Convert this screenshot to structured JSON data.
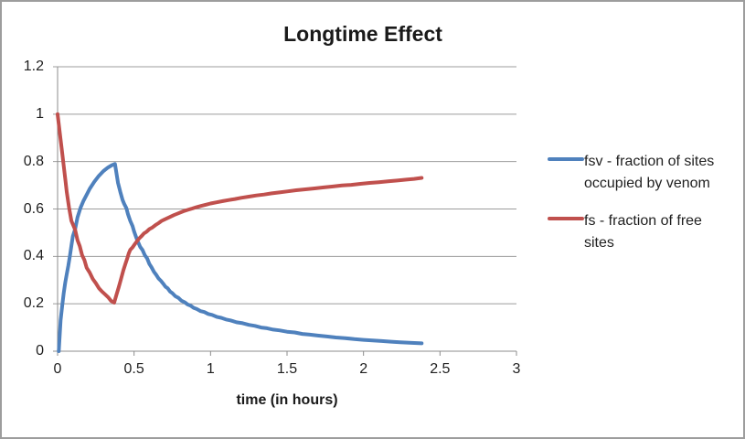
{
  "chart_data": {
    "type": "line",
    "title": "Longtime Effect",
    "xlabel": "time (in hours)",
    "ylabel": "",
    "xlim": [
      0,
      3
    ],
    "ylim": [
      0,
      1.2
    ],
    "xticks": [
      "0",
      "0.5",
      "1",
      "1.5",
      "2",
      "2.5",
      "3"
    ],
    "yticks": [
      "0",
      "0.2",
      "0.4",
      "0.6",
      "0.8",
      "1",
      "1.2"
    ],
    "grid": "horizontal",
    "legend_position": "right",
    "colors": {
      "gridline": "#9c9c9c",
      "axis": "#8c8c8c",
      "text": "#1f1f1f",
      "background": "#ffffff",
      "frame_border": "#9d9d9d"
    },
    "series": [
      {
        "name": "fsv - fraction of sites occupied by venom",
        "color": "#4f81bd",
        "points": [
          [
            0.008,
            0.0
          ],
          [
            0.02,
            0.13
          ],
          [
            0.03,
            0.19
          ],
          [
            0.04,
            0.245
          ],
          [
            0.05,
            0.29
          ],
          [
            0.06,
            0.325
          ],
          [
            0.07,
            0.36
          ],
          [
            0.08,
            0.4
          ],
          [
            0.09,
            0.445
          ],
          [
            0.1,
            0.485
          ],
          [
            0.115,
            0.515
          ],
          [
            0.13,
            0.565
          ],
          [
            0.15,
            0.605
          ],
          [
            0.17,
            0.635
          ],
          [
            0.19,
            0.66
          ],
          [
            0.21,
            0.685
          ],
          [
            0.24,
            0.715
          ],
          [
            0.27,
            0.74
          ],
          [
            0.3,
            0.76
          ],
          [
            0.33,
            0.775
          ],
          [
            0.355,
            0.785
          ],
          [
            0.375,
            0.79
          ],
          [
            0.395,
            0.71
          ],
          [
            0.41,
            0.672
          ],
          [
            0.425,
            0.638
          ],
          [
            0.435,
            0.622
          ],
          [
            0.45,
            0.603
          ],
          [
            0.46,
            0.578
          ],
          [
            0.475,
            0.55
          ],
          [
            0.49,
            0.528
          ],
          [
            0.5,
            0.505
          ],
          [
            0.515,
            0.478
          ],
          [
            0.525,
            0.462
          ],
          [
            0.54,
            0.44
          ],
          [
            0.555,
            0.427
          ],
          [
            0.57,
            0.405
          ],
          [
            0.585,
            0.392
          ],
          [
            0.6,
            0.368
          ],
          [
            0.615,
            0.353
          ],
          [
            0.63,
            0.335
          ],
          [
            0.645,
            0.322
          ],
          [
            0.66,
            0.307
          ],
          [
            0.675,
            0.297
          ],
          [
            0.69,
            0.285
          ],
          [
            0.705,
            0.272
          ],
          [
            0.72,
            0.265
          ],
          [
            0.735,
            0.252
          ],
          [
            0.75,
            0.245
          ],
          [
            0.77,
            0.232
          ],
          [
            0.79,
            0.225
          ],
          [
            0.81,
            0.213
          ],
          [
            0.83,
            0.207
          ],
          [
            0.85,
            0.197
          ],
          [
            0.87,
            0.192
          ],
          [
            0.89,
            0.183
          ],
          [
            0.91,
            0.178
          ],
          [
            0.935,
            0.169
          ],
          [
            0.96,
            0.165
          ],
          [
            0.985,
            0.157
          ],
          [
            1.01,
            0.153
          ],
          [
            1.04,
            0.145
          ],
          [
            1.07,
            0.141
          ],
          [
            1.1,
            0.134
          ],
          [
            1.13,
            0.13
          ],
          [
            1.17,
            0.122
          ],
          [
            1.21,
            0.118
          ],
          [
            1.25,
            0.111
          ],
          [
            1.29,
            0.107
          ],
          [
            1.33,
            0.1
          ],
          [
            1.37,
            0.097
          ],
          [
            1.41,
            0.091
          ],
          [
            1.45,
            0.088
          ],
          [
            1.5,
            0.082
          ],
          [
            1.55,
            0.079
          ],
          [
            1.6,
            0.073
          ],
          [
            1.65,
            0.07
          ],
          [
            1.7,
            0.066
          ],
          [
            1.76,
            0.062
          ],
          [
            1.82,
            0.058
          ],
          [
            1.88,
            0.055
          ],
          [
            1.94,
            0.051
          ],
          [
            2.0,
            0.048
          ],
          [
            2.06,
            0.045
          ],
          [
            2.12,
            0.043
          ],
          [
            2.18,
            0.04
          ],
          [
            2.24,
            0.038
          ],
          [
            2.3,
            0.036
          ],
          [
            2.38,
            0.033
          ]
        ]
      },
      {
        "name": "fs - fraction of free sites",
        "color": "#c0504d",
        "points": [
          [
            0.0,
            1.0
          ],
          [
            0.01,
            0.945
          ],
          [
            0.02,
            0.893
          ],
          [
            0.03,
            0.838
          ],
          [
            0.04,
            0.782
          ],
          [
            0.05,
            0.727
          ],
          [
            0.06,
            0.672
          ],
          [
            0.075,
            0.607
          ],
          [
            0.09,
            0.55
          ],
          [
            0.105,
            0.527
          ],
          [
            0.115,
            0.512
          ],
          [
            0.13,
            0.468
          ],
          [
            0.145,
            0.443
          ],
          [
            0.16,
            0.405
          ],
          [
            0.175,
            0.385
          ],
          [
            0.19,
            0.352
          ],
          [
            0.21,
            0.332
          ],
          [
            0.23,
            0.305
          ],
          [
            0.25,
            0.287
          ],
          [
            0.27,
            0.266
          ],
          [
            0.29,
            0.252
          ],
          [
            0.31,
            0.24
          ],
          [
            0.33,
            0.228
          ],
          [
            0.35,
            0.212
          ],
          [
            0.37,
            0.205
          ],
          [
            0.385,
            0.238
          ],
          [
            0.4,
            0.27
          ],
          [
            0.415,
            0.305
          ],
          [
            0.43,
            0.342
          ],
          [
            0.445,
            0.372
          ],
          [
            0.455,
            0.39
          ],
          [
            0.465,
            0.412
          ],
          [
            0.475,
            0.428
          ],
          [
            0.49,
            0.438
          ],
          [
            0.505,
            0.452
          ],
          [
            0.52,
            0.465
          ],
          [
            0.535,
            0.477
          ],
          [
            0.55,
            0.486
          ],
          [
            0.565,
            0.497
          ],
          [
            0.58,
            0.503
          ],
          [
            0.6,
            0.515
          ],
          [
            0.62,
            0.522
          ],
          [
            0.64,
            0.532
          ],
          [
            0.66,
            0.54
          ],
          [
            0.68,
            0.55
          ],
          [
            0.7,
            0.556
          ],
          [
            0.73,
            0.565
          ],
          [
            0.76,
            0.574
          ],
          [
            0.79,
            0.582
          ],
          [
            0.82,
            0.59
          ],
          [
            0.85,
            0.596
          ],
          [
            0.88,
            0.602
          ],
          [
            0.91,
            0.608
          ],
          [
            0.94,
            0.613
          ],
          [
            0.97,
            0.618
          ],
          [
            1.0,
            0.623
          ],
          [
            1.04,
            0.628
          ],
          [
            1.08,
            0.633
          ],
          [
            1.12,
            0.638
          ],
          [
            1.16,
            0.642
          ],
          [
            1.2,
            0.647
          ],
          [
            1.25,
            0.652
          ],
          [
            1.3,
            0.657
          ],
          [
            1.35,
            0.661
          ],
          [
            1.4,
            0.666
          ],
          [
            1.45,
            0.67
          ],
          [
            1.5,
            0.674
          ],
          [
            1.56,
            0.679
          ],
          [
            1.62,
            0.683
          ],
          [
            1.68,
            0.687
          ],
          [
            1.74,
            0.691
          ],
          [
            1.8,
            0.695
          ],
          [
            1.86,
            0.699
          ],
          [
            1.92,
            0.702
          ],
          [
            1.98,
            0.706
          ],
          [
            2.04,
            0.71
          ],
          [
            2.1,
            0.713
          ],
          [
            2.16,
            0.717
          ],
          [
            2.22,
            0.72
          ],
          [
            2.28,
            0.724
          ],
          [
            2.33,
            0.727
          ],
          [
            2.38,
            0.731
          ]
        ]
      }
    ]
  }
}
